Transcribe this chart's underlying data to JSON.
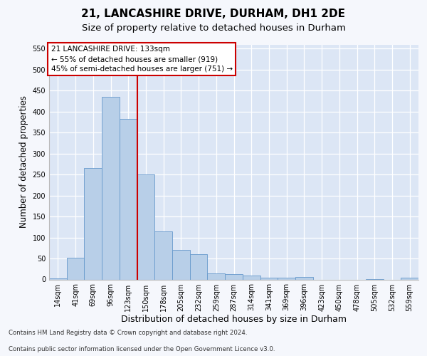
{
  "title1": "21, LANCASHIRE DRIVE, DURHAM, DH1 2DE",
  "title2": "Size of property relative to detached houses in Durham",
  "xlabel": "Distribution of detached houses by size in Durham",
  "ylabel": "Number of detached properties",
  "bin_labels": [
    "14sqm",
    "41sqm",
    "69sqm",
    "96sqm",
    "123sqm",
    "150sqm",
    "178sqm",
    "205sqm",
    "232sqm",
    "259sqm",
    "287sqm",
    "314sqm",
    "341sqm",
    "369sqm",
    "396sqm",
    "423sqm",
    "450sqm",
    "478sqm",
    "505sqm",
    "532sqm",
    "559sqm"
  ],
  "bar_values": [
    3,
    51,
    265,
    435,
    383,
    250,
    115,
    70,
    60,
    14,
    13,
    10,
    5,
    4,
    6,
    0,
    0,
    0,
    1,
    0,
    4
  ],
  "bar_color": "#b8cfe8",
  "bar_edge_color": "#6699cc",
  "background_color": "#dce6f5",
  "fig_background_color": "#f5f7fc",
  "grid_color": "#ffffff",
  "vline_color": "#cc0000",
  "vline_x_index": 4,
  "annotation_title": "21 LANCASHIRE DRIVE: 133sqm",
  "annotation_line1": "← 55% of detached houses are smaller (919)",
  "annotation_line2": "45% of semi-detached houses are larger (751) →",
  "annotation_box_color": "#ffffff",
  "annotation_box_edge": "#cc0000",
  "ylim": [
    0,
    560
  ],
  "yticks": [
    0,
    50,
    100,
    150,
    200,
    250,
    300,
    350,
    400,
    450,
    500,
    550
  ],
  "footnote1": "Contains HM Land Registry data © Crown copyright and database right 2024.",
  "footnote2": "Contains public sector information licensed under the Open Government Licence v3.0.",
  "title1_fontsize": 11,
  "title2_fontsize": 9.5,
  "tick_fontsize": 7,
  "ylabel_fontsize": 8.5,
  "xlabel_fontsize": 9,
  "annotation_fontsize": 7.5,
  "footnote_fontsize": 6.2
}
